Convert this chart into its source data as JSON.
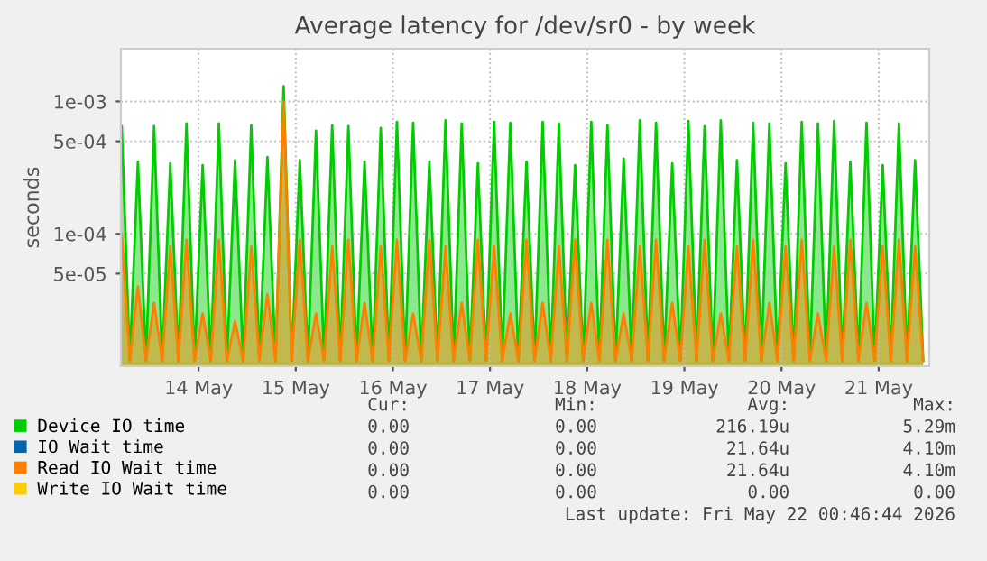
{
  "chart_data": {
    "type": "area",
    "title": "Average latency for /dev/sr0 - by week",
    "ylabel": "seconds",
    "log": "y",
    "grid": true,
    "legend": "bottom",
    "marker": "none",
    "line_style": "solid",
    "ylim": [
      1e-05,
      0.0025
    ],
    "yticks": [
      {
        "value": 5e-05,
        "label": "5e-05"
      },
      {
        "value": 0.0001,
        "label": "1e-04"
      },
      {
        "value": 0.0005,
        "label": "5e-04"
      },
      {
        "value": 0.001,
        "label": "1e-03"
      }
    ],
    "xlim": [
      "2026-05-13T04:48",
      "2026-05-21T12:30"
    ],
    "xticks": [
      {
        "value": "2026-05-14",
        "label": "14 May"
      },
      {
        "value": "2026-05-15",
        "label": "15 May"
      },
      {
        "value": "2026-05-16",
        "label": "16 May"
      },
      {
        "value": "2026-05-17",
        "label": "17 May"
      },
      {
        "value": "2026-05-18",
        "label": "18 May"
      },
      {
        "value": "2026-05-19",
        "label": "19 May"
      },
      {
        "value": "2026-05-20",
        "label": "20 May"
      },
      {
        "value": "2026-05-21",
        "label": "21 May"
      }
    ],
    "x": [
      "2026-05-13T05:00",
      "2026-05-13T07:00",
      "2026-05-13T09:00",
      "2026-05-13T11:00",
      "2026-05-13T13:00",
      "2026-05-13T15:00",
      "2026-05-13T17:00",
      "2026-05-13T19:00",
      "2026-05-13T21:00",
      "2026-05-13T23:00",
      "2026-05-14T01:00",
      "2026-05-14T03:00",
      "2026-05-14T05:00",
      "2026-05-14T07:00",
      "2026-05-14T09:00",
      "2026-05-14T11:00",
      "2026-05-14T13:00",
      "2026-05-14T15:00",
      "2026-05-14T17:00",
      "2026-05-14T19:00",
      "2026-05-14T21:00",
      "2026-05-14T23:00",
      "2026-05-15T01:00",
      "2026-05-15T03:00",
      "2026-05-15T05:00",
      "2026-05-15T07:00",
      "2026-05-15T09:00",
      "2026-05-15T11:00",
      "2026-05-15T13:00",
      "2026-05-15T15:00",
      "2026-05-15T17:00",
      "2026-05-15T19:00",
      "2026-05-15T21:00",
      "2026-05-15T23:00",
      "2026-05-16T01:00",
      "2026-05-16T03:00",
      "2026-05-16T05:00",
      "2026-05-16T07:00",
      "2026-05-16T09:00",
      "2026-05-16T11:00",
      "2026-05-16T13:00",
      "2026-05-16T15:00",
      "2026-05-16T17:00",
      "2026-05-16T19:00",
      "2026-05-16T21:00",
      "2026-05-16T23:00",
      "2026-05-17T01:00",
      "2026-05-17T03:00",
      "2026-05-17T05:00",
      "2026-05-17T07:00",
      "2026-05-17T09:00",
      "2026-05-17T11:00",
      "2026-05-17T13:00",
      "2026-05-17T15:00",
      "2026-05-17T17:00",
      "2026-05-17T19:00",
      "2026-05-17T21:00",
      "2026-05-17T23:00",
      "2026-05-18T01:00",
      "2026-05-18T03:00",
      "2026-05-18T05:00",
      "2026-05-18T07:00",
      "2026-05-18T09:00",
      "2026-05-18T11:00",
      "2026-05-18T13:00",
      "2026-05-18T15:00",
      "2026-05-18T17:00",
      "2026-05-18T19:00",
      "2026-05-18T21:00",
      "2026-05-18T23:00",
      "2026-05-19T01:00",
      "2026-05-19T03:00",
      "2026-05-19T05:00",
      "2026-05-19T07:00",
      "2026-05-19T09:00",
      "2026-05-19T11:00",
      "2026-05-19T13:00",
      "2026-05-19T15:00",
      "2026-05-19T17:00",
      "2026-05-19T19:00",
      "2026-05-19T21:00",
      "2026-05-19T23:00",
      "2026-05-20T01:00",
      "2026-05-20T03:00",
      "2026-05-20T05:00",
      "2026-05-20T07:00",
      "2026-05-20T09:00",
      "2026-05-20T11:00",
      "2026-05-20T13:00",
      "2026-05-20T15:00",
      "2026-05-20T17:00",
      "2026-05-20T19:00",
      "2026-05-20T21:00",
      "2026-05-20T23:00",
      "2026-05-21T01:00",
      "2026-05-21T03:00",
      "2026-05-21T05:00",
      "2026-05-21T07:00",
      "2026-05-21T09:00",
      "2026-05-21T11:00"
    ],
    "series": [
      {
        "name": "Device IO time",
        "color": "#00cc00",
        "values": [
          0.00065,
          1.1e-05,
          0.00035,
          1.1e-05,
          0.00065,
          1.1e-05,
          0.00034,
          1.1e-05,
          0.00068,
          1.1e-05,
          0.00033,
          1.1e-05,
          0.00068,
          1.1e-05,
          0.00036,
          1.1e-05,
          0.00066,
          1.1e-05,
          0.00038,
          1.1e-05,
          0.0013,
          1.1e-05,
          0.00036,
          1.1e-05,
          0.0006,
          1.1e-05,
          0.00066,
          1.1e-05,
          0.00065,
          1.1e-05,
          0.00035,
          1.1e-05,
          0.00063,
          1.1e-05,
          0.0007,
          1.1e-05,
          0.00069,
          1.1e-05,
          0.00035,
          1.1e-05,
          0.00072,
          1.1e-05,
          0.00068,
          1.1e-05,
          0.00034,
          1.1e-05,
          0.0007,
          1.1e-05,
          0.00069,
          1.1e-05,
          0.00035,
          1.1e-05,
          0.0007,
          1.1e-05,
          0.00068,
          1.1e-05,
          0.00033,
          1.1e-05,
          0.0007,
          1.1e-05,
          0.00066,
          1.1e-05,
          0.00037,
          1.1e-05,
          0.00072,
          1.1e-05,
          0.00069,
          1.1e-05,
          0.00034,
          1.1e-05,
          0.00071,
          1.1e-05,
          0.00065,
          1.1e-05,
          0.00072,
          1.1e-05,
          0.00036,
          1.1e-05,
          0.00069,
          1.1e-05,
          0.00068,
          1.1e-05,
          0.00034,
          1.1e-05,
          0.0007,
          1.1e-05,
          0.00068,
          1.1e-05,
          0.00071,
          1.1e-05,
          0.00035,
          1.1e-05,
          0.00069,
          1.1e-05,
          0.00033,
          1.1e-05,
          0.00068,
          1.1e-05,
          0.00036,
          1.1e-05
        ]
      },
      {
        "name": "IO Wait time",
        "color": "#0066b3",
        "values": [
          null,
          null,
          null,
          null,
          null,
          null,
          null,
          null,
          null,
          null,
          null,
          null,
          null,
          null,
          null,
          null,
          null,
          null,
          null,
          null,
          null,
          null,
          null,
          null,
          null,
          null,
          null,
          null,
          null,
          null,
          null,
          null,
          null,
          null,
          null,
          null,
          null,
          null,
          null,
          null,
          null,
          null,
          null,
          null,
          null,
          null,
          null,
          null,
          null,
          null,
          null,
          null,
          null,
          null,
          null,
          null,
          null,
          null,
          null,
          null,
          null,
          null,
          null,
          null,
          null,
          null,
          null,
          null,
          null,
          null,
          null,
          null,
          null,
          null,
          null,
          null,
          null,
          null,
          null,
          null,
          null,
          null,
          null,
          null,
          null,
          null,
          null,
          null,
          null,
          null,
          null,
          null,
          null,
          null,
          null,
          null,
          null,
          null,
          null,
          null
        ]
      },
      {
        "name": "Read IO Wait time",
        "color": "#ff8000",
        "values": [
          0.0001,
          1.1e-05,
          4e-05,
          1.1e-05,
          3e-05,
          1.1e-05,
          8e-05,
          1.1e-05,
          9e-05,
          1.1e-05,
          2.5e-05,
          1.1e-05,
          9e-05,
          1.1e-05,
          2.2e-05,
          1.1e-05,
          8e-05,
          1.1e-05,
          3.5e-05,
          1.1e-05,
          0.001,
          1.1e-05,
          9e-05,
          1.1e-05,
          2.5e-05,
          1.1e-05,
          8e-05,
          1.1e-05,
          9e-05,
          1.1e-05,
          3e-05,
          1.1e-05,
          8e-05,
          1.1e-05,
          9e-05,
          1.1e-05,
          2.5e-05,
          1.1e-05,
          9e-05,
          1.1e-05,
          8e-05,
          1.1e-05,
          3e-05,
          1.1e-05,
          9e-05,
          1.1e-05,
          8e-05,
          1.1e-05,
          2.5e-05,
          1.1e-05,
          9e-05,
          1.1e-05,
          3e-05,
          1.1e-05,
          8e-05,
          1.1e-05,
          9e-05,
          1.1e-05,
          3e-05,
          1.1e-05,
          9e-05,
          1.1e-05,
          2.5e-05,
          1.1e-05,
          8e-05,
          1.1e-05,
          9e-05,
          1.1e-05,
          3e-05,
          1.1e-05,
          8e-05,
          1.1e-05,
          9e-05,
          1.1e-05,
          2.5e-05,
          1.1e-05,
          8e-05,
          1.1e-05,
          9e-05,
          1.1e-05,
          3e-05,
          1.1e-05,
          8e-05,
          1.1e-05,
          9e-05,
          1.1e-05,
          2.5e-05,
          1.1e-05,
          8e-05,
          1.1e-05,
          9e-05,
          1.1e-05,
          3e-05,
          1.1e-05,
          8e-05,
          1.1e-05,
          9e-05,
          1.1e-05,
          8e-05,
          1.1e-05
        ]
      },
      {
        "name": "Write IO Wait time",
        "color": "#ffcc00",
        "values": [
          null,
          null,
          null,
          null,
          null,
          null,
          null,
          null,
          null,
          null,
          null,
          null,
          null,
          null,
          null,
          null,
          null,
          null,
          null,
          null,
          null,
          null,
          null,
          null,
          null,
          null,
          null,
          null,
          null,
          null,
          null,
          null,
          null,
          null,
          null,
          null,
          null,
          null,
          null,
          null,
          null,
          null,
          null,
          null,
          null,
          null,
          null,
          null,
          null,
          null,
          null,
          null,
          null,
          null,
          null,
          null,
          null,
          null,
          null,
          null,
          null,
          null,
          null,
          null,
          null,
          null,
          null,
          null,
          null,
          null,
          null,
          null,
          null,
          null,
          null,
          null,
          null,
          null,
          null,
          null,
          null,
          null,
          null,
          null,
          null,
          null,
          null,
          null,
          null,
          null,
          null,
          null,
          null,
          null,
          null,
          null,
          null,
          null,
          null,
          null
        ]
      }
    ],
    "annotations": [
      "Cur:",
      "Min:",
      "Avg:",
      "Max:",
      "0.00",
      "0.00",
      "216.19u",
      "5.29m",
      "0.00",
      "0.00",
      "21.64u",
      "4.10m",
      "0.00",
      "0.00",
      "21.64u",
      "4.10m",
      "0.00",
      "0.00",
      "0.00",
      "0.00",
      "Last update: Fri May 22 00:46:44 2026"
    ]
  }
}
